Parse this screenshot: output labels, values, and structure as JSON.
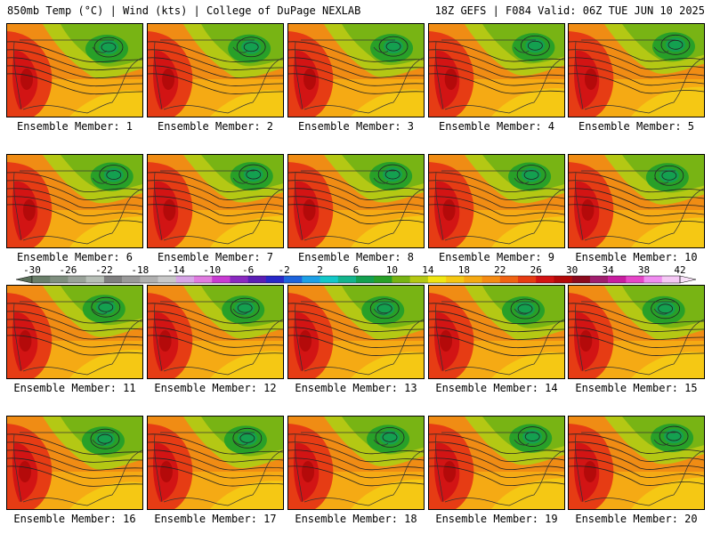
{
  "header": {
    "left_title": "850mb Temp (°C) | Wind (kts) | College of DuPage NEXLAB",
    "right_title": "18Z GEFS | F084 Valid: 06Z TUE JUN 10 2025"
  },
  "members": [
    "Ensemble Member: 1",
    "Ensemble Member: 2",
    "Ensemble Member: 3",
    "Ensemble Member: 4",
    "Ensemble Member: 5",
    "Ensemble Member: 6",
    "Ensemble Member: 7",
    "Ensemble Member: 8",
    "Ensemble Member: 9",
    "Ensemble Member: 10",
    "Ensemble Member: 11",
    "Ensemble Member: 12",
    "Ensemble Member: 13",
    "Ensemble Member: 14",
    "Ensemble Member: 15",
    "Ensemble Member: 16",
    "Ensemble Member: 17",
    "Ensemble Member: 18",
    "Ensemble Member: 19",
    "Ensemble Member: 20"
  ],
  "colorbar": {
    "tick_labels": [
      "-30",
      "-26",
      "-22",
      "-18",
      "-14",
      "-10",
      "-6",
      "-2",
      "2",
      "6",
      "10",
      "14",
      "18",
      "22",
      "26",
      "30",
      "34",
      "38",
      "42"
    ],
    "colors": [
      "#6a7f6a",
      "#7f8f7f",
      "#9aa39a",
      "#b7bfb7",
      "#7f7f7f",
      "#9a9a9a",
      "#b0b0b0",
      "#c8c8c8",
      "#d7a6e6",
      "#e07ce0",
      "#c83cd2",
      "#8a2ac0",
      "#5a1eb4",
      "#2828c8",
      "#1e64dc",
      "#1ea0e6",
      "#14c8c8",
      "#14b48c",
      "#14a050",
      "#28a028",
      "#78b414",
      "#b4c814",
      "#f0e614",
      "#f5c814",
      "#f5aa14",
      "#f58c14",
      "#f06414",
      "#e63c14",
      "#d21414",
      "#b40a0a",
      "#8c0a1e",
      "#a01e6e",
      "#c81ea0",
      "#e646c8",
      "#f08cf0",
      "#f5c8f5"
    ]
  }
}
